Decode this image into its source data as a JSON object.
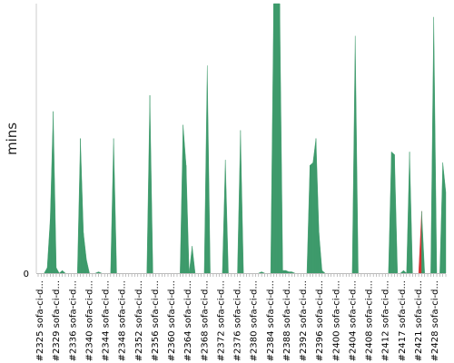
{
  "chart_data": {
    "type": "area",
    "title": "",
    "xlabel": "",
    "ylabel": "mins",
    "y_tick_labels": [
      "0"
    ],
    "ylim": [
      0,
      100
    ],
    "grid": false,
    "colors": {
      "pass": "#3d9a6b",
      "fail": "#d23232",
      "axis": "#bbbbbb"
    },
    "x_tick_labels": [
      "#2325 sofa-ci-d...",
      "#2329 sofa-ci-d...",
      "#2336 sofa-ci-d...",
      "#2340 sofa-ci-d...",
      "#2344 sofa-ci-d...",
      "#2348 sofa-ci-d...",
      "#2352 sofa-ci-d...",
      "#2356 sofa-ci-d...",
      "#2360 sofa-ci-d...",
      "#2364 sofa-ci-d...",
      "#2368 sofa-ci-d...",
      "#2372 sofa-ci-d...",
      "#2376 sofa-ci-d...",
      "#2380 sofa-ci-d...",
      "#2384 sofa-ci-d...",
      "#2388 sofa-ci-d...",
      "#2392 sofa-ci-d...",
      "#2396 sofa-ci-d...",
      "#2400 sofa-ci-d...",
      "#2404 sofa-ci-d...",
      "#2408 sofa-ci-d...",
      "#2412 sofa-ci-d...",
      "#2417 sofa-ci-d...",
      "#2421 sofa-ci-d...",
      "#2428 sofa-ci-d..."
    ],
    "values": [
      0,
      0,
      0,
      2,
      20,
      60,
      2,
      0,
      1,
      0,
      0,
      0,
      0,
      0,
      50,
      15,
      5,
      0,
      0,
      0,
      0.5,
      0,
      0,
      0,
      0,
      50,
      0,
      0,
      0,
      0,
      0,
      0,
      0,
      0,
      0,
      0,
      0,
      66,
      0,
      0,
      0,
      0,
      0,
      0,
      0,
      0,
      0,
      0,
      55,
      40,
      0,
      10,
      0,
      0,
      0,
      0,
      77,
      0,
      0,
      0,
      0,
      0,
      42,
      0,
      0,
      0,
      0,
      53,
      0,
      0,
      0,
      0,
      0,
      0,
      0.5,
      0,
      0,
      0,
      100,
      100,
      100,
      1,
      1,
      0.5,
      0.5,
      0,
      0,
      0,
      0,
      0,
      40,
      41,
      50,
      15,
      1,
      0,
      0,
      0,
      0,
      0,
      0,
      0,
      0,
      0,
      0,
      88,
      0,
      0,
      0,
      0,
      0,
      0,
      0,
      0,
      0,
      0,
      0,
      45,
      44,
      0,
      0,
      1,
      0,
      45,
      0,
      0,
      0,
      23,
      0,
      0,
      0,
      95,
      0,
      0,
      41,
      30
    ],
    "status": [
      "pass",
      "pass",
      "pass",
      "pass",
      "pass",
      "pass",
      "pass",
      "pass",
      "pass",
      "pass",
      "pass",
      "pass",
      "pass",
      "pass",
      "pass",
      "pass",
      "pass",
      "pass",
      "pass",
      "pass",
      "pass",
      "pass",
      "pass",
      "pass",
      "pass",
      "pass",
      "pass",
      "pass",
      "pass",
      "pass",
      "pass",
      "pass",
      "pass",
      "pass",
      "pass",
      "pass",
      "pass",
      "pass",
      "pass",
      "pass",
      "pass",
      "pass",
      "pass",
      "pass",
      "pass",
      "pass",
      "pass",
      "pass",
      "pass",
      "pass",
      "pass",
      "pass",
      "pass",
      "pass",
      "pass",
      "pass",
      "pass",
      "pass",
      "pass",
      "pass",
      "pass",
      "pass",
      "pass",
      "pass",
      "pass",
      "pass",
      "pass",
      "pass",
      "pass",
      "pass",
      "pass",
      "pass",
      "pass",
      "pass",
      "pass",
      "pass",
      "pass",
      "pass",
      "pass",
      "pass",
      "pass",
      "pass",
      "pass",
      "pass",
      "pass",
      "pass",
      "pass",
      "pass",
      "pass",
      "pass",
      "pass",
      "pass",
      "pass",
      "pass",
      "pass",
      "pass",
      "pass",
      "pass",
      "pass",
      "pass",
      "pass",
      "pass",
      "pass",
      "pass",
      "pass",
      "pass",
      "pass",
      "pass",
      "pass",
      "pass",
      "pass",
      "pass",
      "pass",
      "pass",
      "pass",
      "pass",
      "pass",
      "pass",
      "pass",
      "pass",
      "pass",
      "pass",
      "pass",
      "pass",
      "pass",
      "pass",
      "fail",
      "pass",
      "pass",
      "pass",
      "pass",
      "pass",
      "pass",
      "pass",
      "pass",
      "pass"
    ]
  }
}
